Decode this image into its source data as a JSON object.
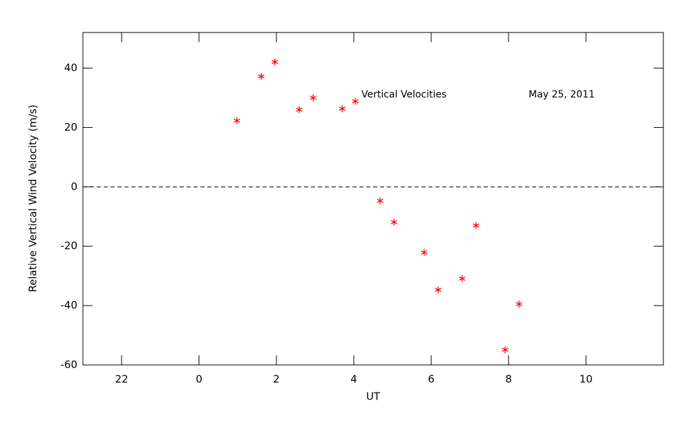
{
  "chart_data": {
    "type": "scatter",
    "xlabel": "UT",
    "ylabel": "Relative Vertical Wind Velocity (m/s)",
    "annotations": [
      "Vertical Velocities",
      "May 25, 2011"
    ],
    "xlim": [
      -3,
      12
    ],
    "ylim": [
      -60,
      52
    ],
    "xticks": [
      {
        "value": -2,
        "label": "22"
      },
      0,
      2,
      4,
      6,
      8,
      10
    ],
    "yticks": [
      -60,
      -40,
      -20,
      0,
      20,
      40
    ],
    "zero_line": true,
    "series": [
      {
        "color": "#ff0000",
        "x": [
          0.98,
          1.61,
          1.96,
          2.59,
          2.95,
          3.7,
          4.04,
          4.68,
          5.04,
          5.82,
          6.18,
          6.8,
          7.16,
          7.91,
          8.27
        ],
        "values": [
          22.3,
          37.2,
          42.1,
          26.0,
          30.0,
          26.3,
          28.8,
          -4.7,
          -11.9,
          -22.1,
          -34.7,
          -30.9,
          -13.0,
          -54.9,
          -39.5
        ]
      }
    ]
  }
}
